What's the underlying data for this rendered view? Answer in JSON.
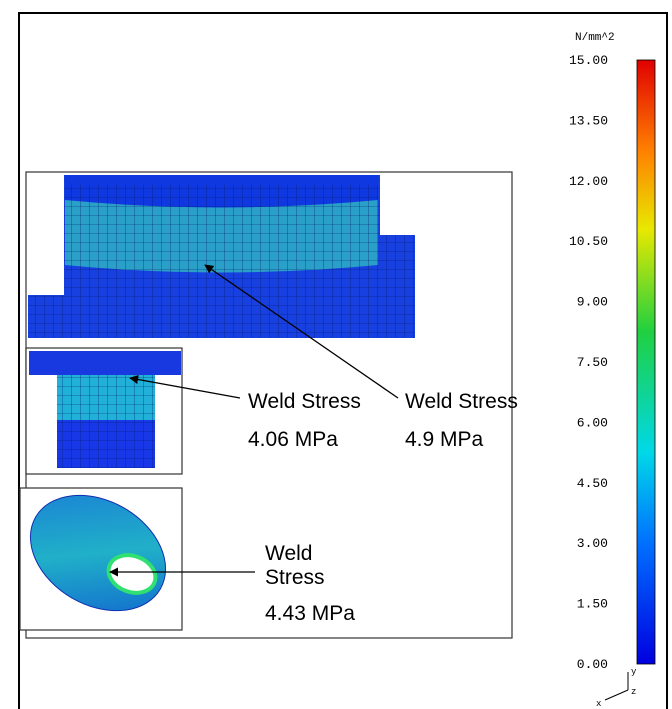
{
  "legend": {
    "unit": "N/mm^2",
    "ticks": [
      "15.00",
      "13.50",
      "12.00",
      "10.50",
      "9.00",
      "7.50",
      "6.00",
      "4.50",
      "3.00",
      "1.50",
      "0.00"
    ]
  },
  "annotations": [
    {
      "lines": [
        "Weld Stress",
        "4.06 MPa"
      ]
    },
    {
      "lines": [
        "Weld Stress",
        "4.9 MPa"
      ]
    },
    {
      "lines": [
        "Weld",
        "Stress",
        "4.43 MPa"
      ]
    }
  ],
  "triad": [
    "y",
    "z",
    "x"
  ]
}
